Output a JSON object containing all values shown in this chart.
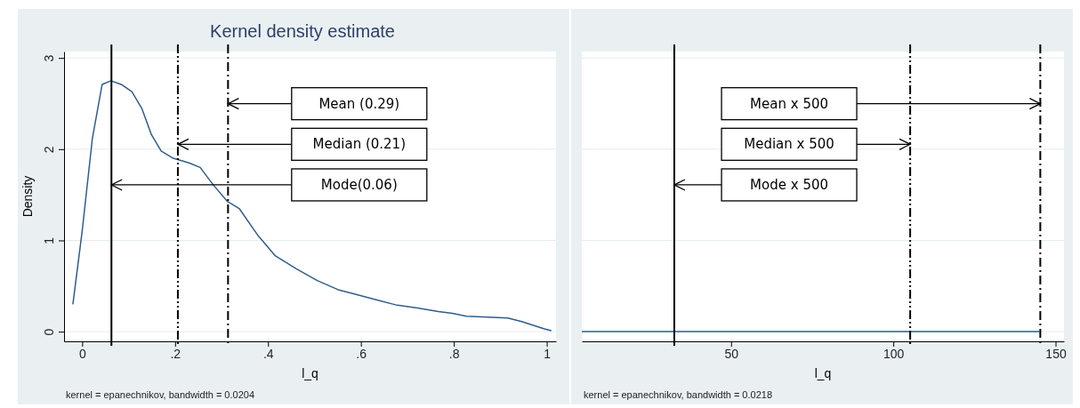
{
  "chart_data": [
    {
      "type": "line",
      "title": "Kernel density estimate",
      "xlabel": "l_q",
      "ylabel": "Density",
      "xlim": [
        -0.039,
        1.02
      ],
      "ylim": [
        -0.106,
        3.07
      ],
      "xticks": [
        {
          "value": 0,
          "label": "0"
        },
        {
          "value": 0.2,
          "label": ".2"
        },
        {
          "value": 0.4,
          "label": ".4"
        },
        {
          "value": 0.6,
          "label": ".6"
        },
        {
          "value": 0.8,
          "label": ".8"
        },
        {
          "value": 1,
          "label": "1"
        }
      ],
      "yticks": [
        0,
        1,
        2,
        3
      ],
      "grid": "y",
      "series": [
        {
          "color": "#2e5e8e",
          "x": [
            -0.02,
            0,
            0.022,
            0.043,
            0.062,
            0.084,
            0.107,
            0.129,
            0.149,
            0.17,
            0.196,
            0.23,
            0.254,
            0.282,
            0.312,
            0.338,
            0.379,
            0.416,
            0.461,
            0.506,
            0.551,
            0.588,
            0.633,
            0.678,
            0.722,
            0.767,
            0.797,
            0.827,
            0.872,
            0.916,
            0.946,
            0.995,
            1.01
          ],
          "values": [
            0.3,
            1.1,
            2.12,
            2.71,
            2.75,
            2.71,
            2.63,
            2.44,
            2.16,
            1.98,
            1.9,
            1.85,
            1.8,
            1.61,
            1.43,
            1.35,
            1.05,
            0.83,
            0.69,
            0.56,
            0.46,
            0.41,
            0.35,
            0.29,
            0.26,
            0.22,
            0.2,
            0.17,
            0.16,
            0.15,
            0.11,
            0.03,
            0.01
          ]
        }
      ],
      "ref_lines": [
        {
          "axis": "x",
          "value": 0.314,
          "color": "#000000",
          "line_style": "dashed"
        },
        {
          "axis": "x",
          "value": 0.206,
          "color": "#000000",
          "line_style": "dotted"
        },
        {
          "axis": "x",
          "value": 0.063,
          "color": "#000000",
          "line_style": "solid"
        }
      ],
      "annotations": [
        "Mean (0.29)",
        "Median (0.21)",
        "Mode(0.06)",
        "kernel = epanechnikov, bandwidth = 0.0204"
      ]
    },
    {
      "type": "line",
      "xlabel": "l_q",
      "xlim": [
        4,
        152.6
      ],
      "ylim": [
        -0.106,
        3.07
      ],
      "xticks": [
        50,
        100,
        150
      ],
      "yticks": [
        0,
        1,
        2,
        3
      ],
      "grid": "y",
      "tick_labels": "x",
      "series": [
        {
          "color": "#2e5e8e",
          "x": [
            4,
            10,
            50,
            100,
            145
          ],
          "values": [
            0,
            0,
            0,
            0,
            0
          ]
        }
      ],
      "ref_lines": [
        {
          "axis": "x",
          "value": 145.3,
          "color": "#000000",
          "line_style": "dashed"
        },
        {
          "axis": "x",
          "value": 105.2,
          "color": "#000000",
          "line_style": "dotted"
        },
        {
          "axis": "x",
          "value": 32.5,
          "color": "#000000",
          "line_style": "solid"
        }
      ],
      "annotations": [
        "Mean x 500",
        "Median x 500",
        "Mode x 500",
        "kernel = epanechnikov, bandwidth = 0.0218"
      ]
    }
  ]
}
